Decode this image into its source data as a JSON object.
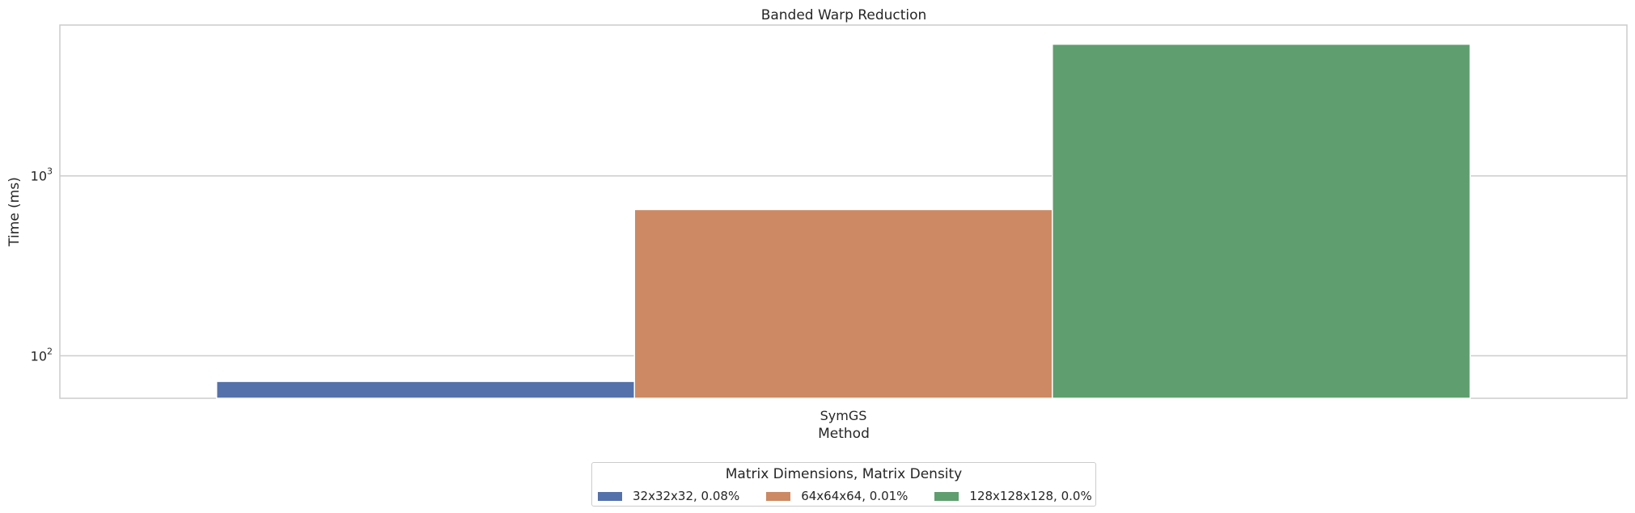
{
  "chart_data": {
    "type": "bar",
    "title": "Banded Warp Reduction",
    "xlabel": "Method",
    "ylabel": "Time (ms)",
    "yscale": "log",
    "ylim": [
      58,
      6900
    ],
    "categories": [
      "SymGS"
    ],
    "yticks": [
      {
        "value": 100,
        "base": "10",
        "exp": "2"
      },
      {
        "value": 1000,
        "base": "10",
        "exp": "3"
      }
    ],
    "grid": "y",
    "legend_title": "Matrix Dimensions, Matrix Density",
    "legend_placement": "bottom-center",
    "series": [
      {
        "name": "32x32x32, 0.08%",
        "color": "#5471ab",
        "values": [
          72
        ]
      },
      {
        "name": "64x64x64, 0.01%",
        "color": "#cc8963",
        "values": [
          650
        ]
      },
      {
        "name": "128x128x128, 0.0%",
        "color": "#5f9e6e",
        "values": [
          5400
        ]
      }
    ]
  }
}
